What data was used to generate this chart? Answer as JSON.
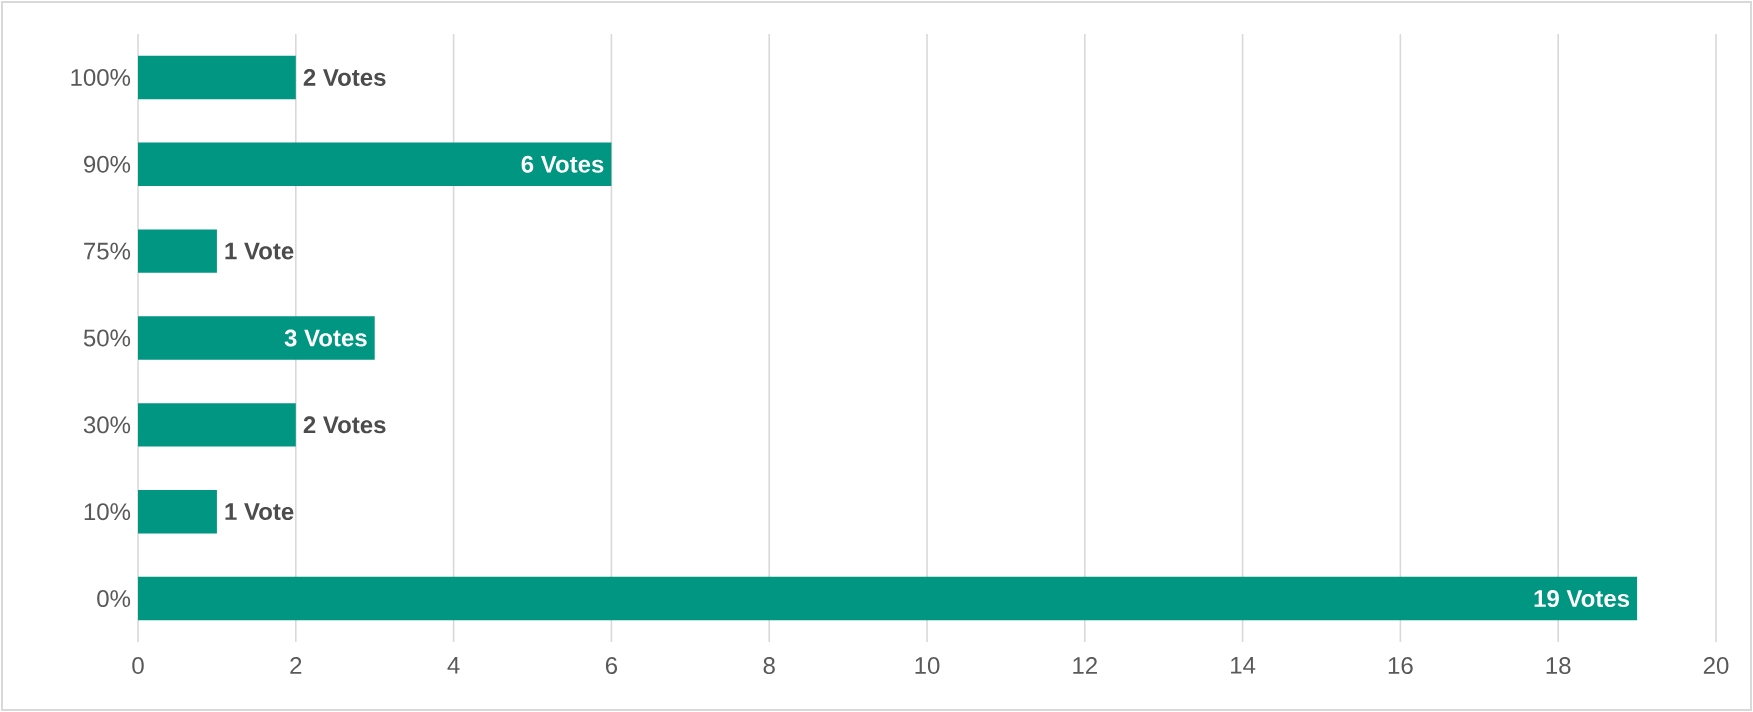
{
  "chart_data": {
    "type": "bar",
    "orientation": "horizontal",
    "categories": [
      "100%",
      "90%",
      "75%",
      "50%",
      "30%",
      "10%",
      "0%"
    ],
    "values": [
      2,
      6,
      1,
      3,
      2,
      1,
      19
    ],
    "value_labels": [
      "2 Votes",
      "6 Votes",
      "1 Vote",
      "3 Votes",
      "2 Votes",
      "1 Vote",
      "19 Votes"
    ],
    "color": "#009681",
    "xlim": [
      0,
      20
    ],
    "xticks": [
      0,
      2,
      4,
      6,
      8,
      10,
      12,
      14,
      16,
      18,
      20
    ],
    "grid": "x"
  }
}
